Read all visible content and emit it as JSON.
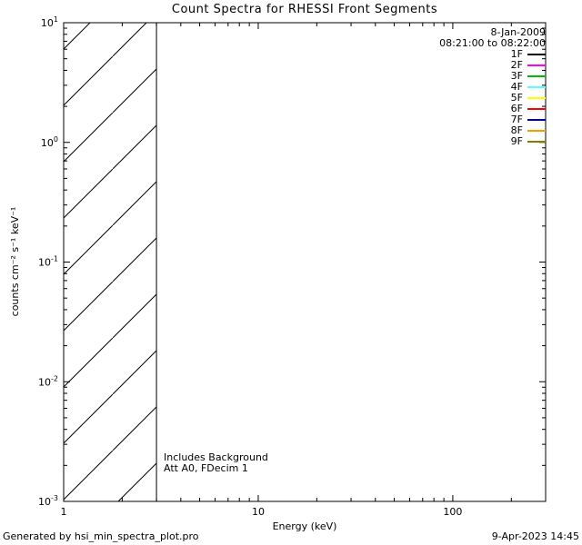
{
  "title": "Count Spectra for RHESSI Front Segments",
  "legend": {
    "date": "8-Jan-2009",
    "time_range": "08:21:00 to 08:22:00",
    "entries": [
      {
        "label": "1F",
        "color": "#000000"
      },
      {
        "label": "2F",
        "color": "#ff00ff"
      },
      {
        "label": "3F",
        "color": "#00bb00"
      },
      {
        "label": "4F",
        "color": "#55ffff"
      },
      {
        "label": "5F",
        "color": "#ffff00"
      },
      {
        "label": "6F",
        "color": "#ff0000"
      },
      {
        "label": "7F",
        "color": "#0000bb"
      },
      {
        "label": "8F",
        "color": "#ff9900"
      },
      {
        "label": "9F",
        "color": "#808000"
      }
    ]
  },
  "annotations": [
    "Includes Background",
    "Att A0, FDecim 1"
  ],
  "footer": {
    "left": "Generated by hsi_min_spectra_plot.pro",
    "right": "9-Apr-2023 14:45"
  },
  "chart_data": {
    "type": "line",
    "title": "Count Spectra for RHESSI Front Segments",
    "xlabel": "Energy (keV)",
    "ylabel": "counts cm⁻² s⁻¹ keV⁻¹",
    "xscale": "log",
    "yscale": "log",
    "xlim": [
      1,
      300
    ],
    "ylim": [
      0.001,
      10
    ],
    "x_major_ticks": [
      1,
      10,
      100
    ],
    "x_tick_labels": [
      "1",
      "10",
      "100"
    ],
    "y_major_tick_exponents": [
      -3,
      -2,
      -1,
      0,
      1
    ],
    "y_tick_labels": [
      "10⁻³",
      "10⁻²",
      "10⁻¹",
      "10⁰",
      "10¹"
    ],
    "grid": false,
    "legend_position": "upper-right",
    "series": [],
    "hatched_region": {
      "x_from": 1,
      "x_to": 3,
      "y_from": 0.001,
      "y_to": 10,
      "style": "diagonal-hatch"
    }
  }
}
